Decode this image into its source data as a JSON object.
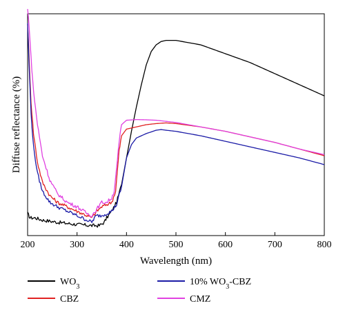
{
  "chart_data": {
    "type": "line",
    "xlabel": "Wavelength (nm)",
    "ylabel": "Diffuse reflectance (%)",
    "xlim": [
      200,
      800
    ],
    "ylim": [
      0,
      100
    ],
    "x_ticks": [
      "200",
      "300",
      "400",
      "500",
      "600",
      "700",
      "800"
    ],
    "y_ticks_shown": false,
    "legend_position": "bottom",
    "series": [
      {
        "name": "WO3",
        "color": "#000000",
        "x": [
          200,
          205,
          215,
          230,
          260,
          300,
          330,
          345,
          355,
          360,
          370,
          380,
          390,
          400,
          410,
          420,
          430,
          440,
          450,
          460,
          470,
          480,
          500,
          550,
          600,
          650,
          700,
          750,
          800
        ],
        "y": [
          10,
          8,
          8,
          7,
          6,
          5,
          4.5,
          4.5,
          6,
          8,
          11,
          15,
          23,
          35,
          47,
          58,
          68,
          77,
          83,
          86,
          87.5,
          88,
          88,
          86,
          82,
          78,
          73,
          68,
          63
        ]
      },
      {
        "name": "CBZ",
        "color": "#e02020",
        "x": [
          200,
          203,
          207,
          212,
          220,
          230,
          245,
          260,
          280,
          300,
          320,
          330,
          340,
          350,
          360,
          370,
          378,
          385,
          390,
          400,
          420,
          440,
          460,
          480,
          500,
          550,
          600,
          650,
          700,
          750,
          800
        ],
        "y": [
          96,
          80,
          60,
          46,
          33,
          24,
          18,
          15,
          13,
          11,
          9,
          8,
          11,
          13,
          14,
          15,
          20,
          38,
          45,
          48,
          49,
          50,
          50.5,
          50.8,
          50.5,
          49,
          47,
          44.5,
          42,
          39,
          36
        ]
      },
      {
        "name": "10% WO3-CBZ",
        "color": "#1a1aa6",
        "x": [
          200,
          203,
          207,
          212,
          220,
          230,
          245,
          260,
          280,
          300,
          320,
          330,
          335,
          340,
          350,
          360,
          370,
          380,
          390,
          400,
          410,
          420,
          440,
          460,
          470,
          480,
          500,
          550,
          600,
          650,
          700,
          750,
          800
        ],
        "y": [
          96,
          77,
          55,
          40,
          28,
          20,
          15,
          13,
          11,
          9,
          7,
          6,
          8,
          9,
          9,
          10,
          11,
          14,
          22,
          35,
          41,
          44,
          46,
          47.5,
          47.8,
          47.5,
          47,
          45,
          42.5,
          40,
          37.5,
          35,
          32
        ]
      },
      {
        "name": "CMZ",
        "color": "#e040e0",
        "x": [
          200,
          203,
          207,
          212,
          220,
          230,
          245,
          260,
          280,
          300,
          320,
          330,
          340,
          350,
          360,
          370,
          375,
          380,
          385,
          390,
          400,
          420,
          440,
          460,
          480,
          500,
          550,
          600,
          650,
          700,
          750,
          800
        ],
        "y": [
          102,
          95,
          80,
          65,
          50,
          36,
          25,
          19,
          15,
          13,
          10,
          9,
          12,
          15,
          15,
          17,
          20,
          30,
          42,
          50,
          52,
          52.3,
          52.2,
          52,
          51.5,
          51,
          49,
          47,
          44.5,
          42,
          39,
          36.5
        ]
      }
    ]
  }
}
